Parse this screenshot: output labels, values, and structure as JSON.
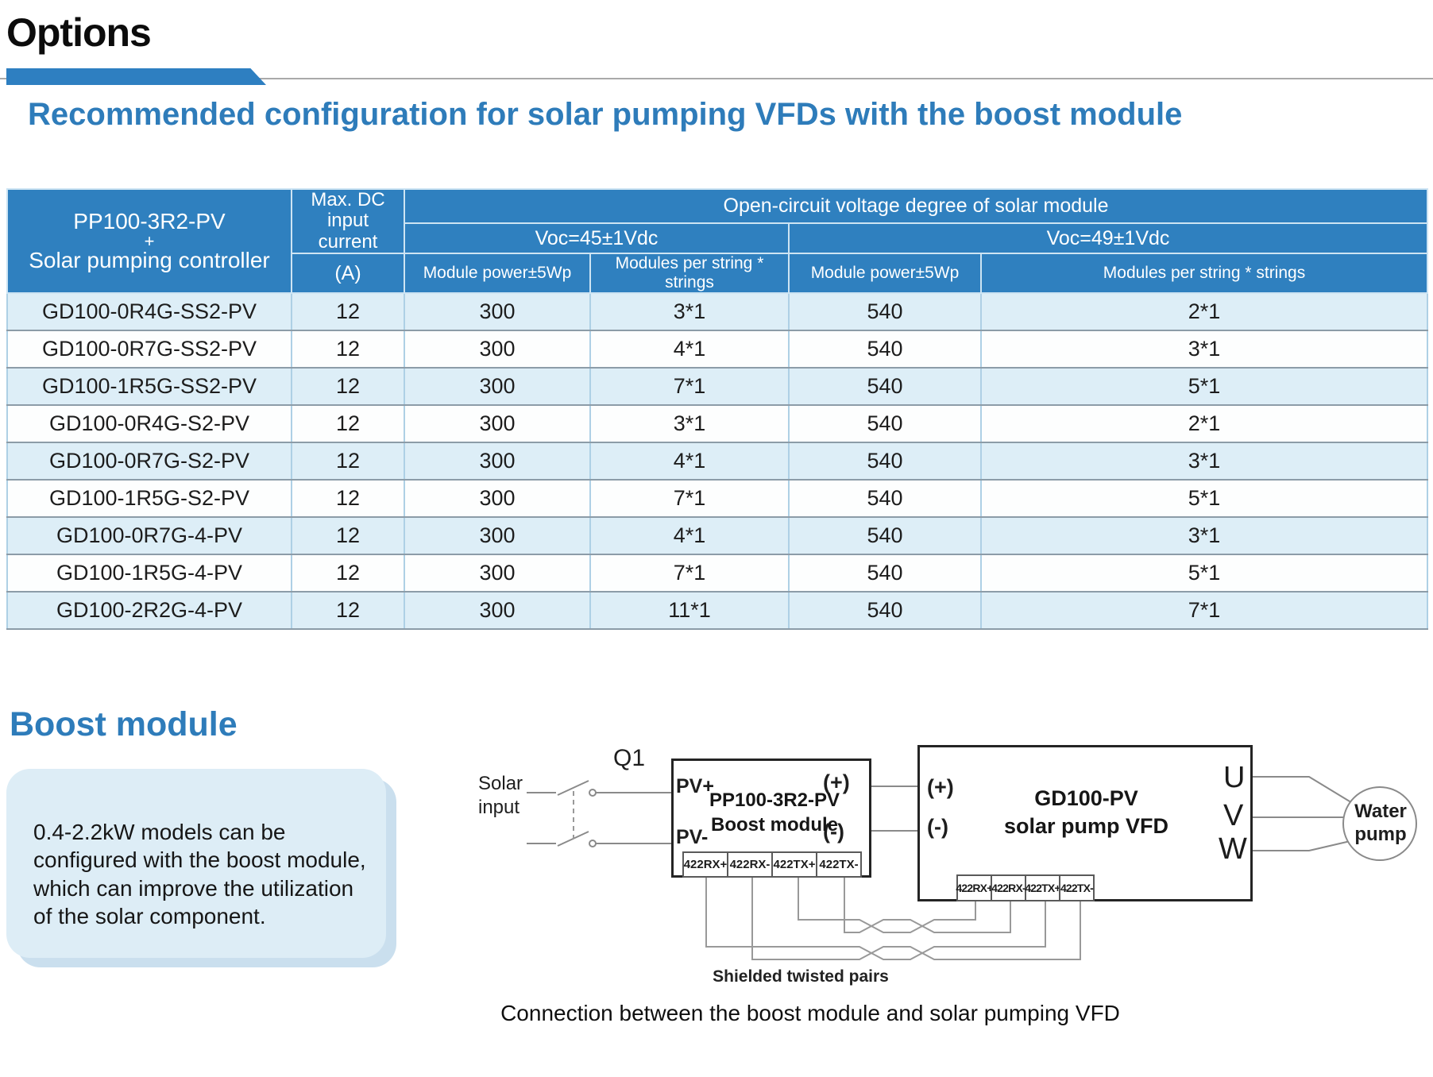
{
  "page": {
    "title": "Options",
    "section1_heading": "Recommended configuration for solar pumping VFDs with the boost module",
    "section2_heading": "Boost module",
    "boost_note": "0.4-2.2kW models can be configured with the boost module, which can improve the utilization of the solar component.",
    "diagram_caption": "Connection between the boost module and solar pumping VFD"
  },
  "colors": {
    "table_header_blue": "#2f80bf",
    "heading_blue": "#2e7cba",
    "row_alt_blue": "#ddeef7",
    "note_box_blue": "#ddedf6",
    "accent_bar_blue": "#2e7fc1"
  },
  "table": {
    "header": {
      "model_line1": "PP100-3R2-PV",
      "model_line2": "+",
      "model_line3": "Solar pumping controller",
      "max_dc": "Max. DC input current",
      "max_dc_unit": "(A)",
      "group": "Open-circuit voltage degree of solar module",
      "voc45": "Voc=45±1Vdc",
      "voc49": "Voc=49±1Vdc",
      "module_power": "Module power±5Wp",
      "modules_per_string": "Modules per string * strings"
    },
    "rows": [
      [
        "GD100-0R4G-SS2-PV",
        "12",
        "300",
        "3*1",
        "540",
        "2*1"
      ],
      [
        "GD100-0R7G-SS2-PV",
        "12",
        "300",
        "4*1",
        "540",
        "3*1"
      ],
      [
        "GD100-1R5G-SS2-PV",
        "12",
        "300",
        "7*1",
        "540",
        "5*1"
      ],
      [
        "GD100-0R4G-S2-PV",
        "12",
        "300",
        "3*1",
        "540",
        "2*1"
      ],
      [
        "GD100-0R7G-S2-PV",
        "12",
        "300",
        "4*1",
        "540",
        "3*1"
      ],
      [
        "GD100-1R5G-S2-PV",
        "12",
        "300",
        "7*1",
        "540",
        "5*1"
      ],
      [
        "GD100-0R7G-4-PV",
        "12",
        "300",
        "4*1",
        "540",
        "3*1"
      ],
      [
        "GD100-1R5G-4-PV",
        "12",
        "300",
        "7*1",
        "540",
        "5*1"
      ],
      [
        "GD100-2R2G-4-PV",
        "12",
        "300",
        "11*1",
        "540",
        "7*1"
      ]
    ]
  },
  "diagram": {
    "q1_label": "Q1",
    "solar_input_label": "Solar input",
    "boost": {
      "pv_plus": "PV+",
      "pv_minus": "PV-",
      "out_plus": "(+)",
      "out_minus": "(-)",
      "title1": "PP100-3R2-PV",
      "title2": "Boost module",
      "terminals": [
        "422RX+",
        "422RX-",
        "422TX+",
        "422TX-"
      ]
    },
    "vfd": {
      "in_plus": "(+)",
      "in_minus": "(-)",
      "title1": "GD100-PV",
      "title2": "solar pump VFD",
      "u": "U",
      "v": "V",
      "w": "W",
      "terminals": [
        "422RX+",
        "422RX-",
        "422TX+",
        "422TX-"
      ]
    },
    "water_pump_label": "Water pump",
    "twisted_pairs_label": "Shielded twisted pairs"
  }
}
